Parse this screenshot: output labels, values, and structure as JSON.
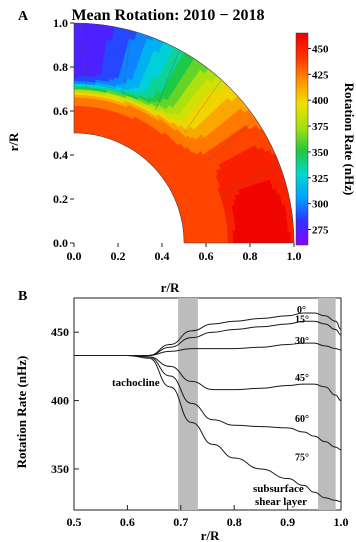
{
  "chart_data": [
    {
      "panel": "A",
      "type": "heatmap",
      "title": "Mean Rotation: 2010 − 2018",
      "xlabel": "r/R",
      "ylabel": "r/R",
      "xlim": [
        0.0,
        1.0
      ],
      "ylim": [
        0.0,
        1.0
      ],
      "x_ticks": [
        "0.0",
        "0.2",
        "0.4",
        "0.6",
        "0.8",
        "1.0"
      ],
      "y_ticks": [
        "0.0",
        "0.2",
        "0.4",
        "0.6",
        "0.8",
        "1.0"
      ],
      "colorbar": {
        "label": "Rotation Rate (nHz)",
        "ticks": [
          "450",
          "425",
          "400",
          "375",
          "350",
          "325",
          "300",
          "275"
        ],
        "range": [
          260,
          465
        ]
      },
      "inner_radius": 0.5,
      "outer_radius": 1.0,
      "colors": [
        "#8b00ff",
        "#3030ff",
        "#00a0ff",
        "#00d8d0",
        "#20c840",
        "#a8e010",
        "#f0e000",
        "#ff9000",
        "#ff3000",
        "#ee0000"
      ]
    },
    {
      "panel": "B",
      "type": "line",
      "xlabel": "r/R",
      "ylabel": "Rotation Rate (nHz)",
      "xlim": [
        0.5,
        1.0
      ],
      "ylim": [
        320,
        475
      ],
      "x_ticks": [
        0.5,
        0.6,
        0.7,
        0.8,
        0.9,
        1.0
      ],
      "y_ticks": [
        350,
        400,
        450
      ],
      "shaded_regions": [
        [
          0.695,
          0.732
        ],
        [
          0.957,
          0.99
        ]
      ],
      "annotations": {
        "tachocline": "tachocline",
        "subsurface": "subsurface",
        "shear_layer": "shear layer"
      },
      "series": [
        {
          "name": "0°",
          "x": [
            0.5,
            0.6,
            0.64,
            0.68,
            0.72,
            0.76,
            0.8,
            0.85,
            0.9,
            0.93,
            0.95,
            0.97,
            0.99,
            1.0
          ],
          "y": [
            433,
            433,
            433,
            441,
            451,
            456,
            458,
            460,
            462,
            464,
            464,
            462,
            458,
            452
          ]
        },
        {
          "name": "15°",
          "x": [
            0.5,
            0.6,
            0.64,
            0.68,
            0.72,
            0.76,
            0.8,
            0.85,
            0.9,
            0.93,
            0.95,
            0.97,
            0.99,
            1.0
          ],
          "y": [
            433,
            433,
            433,
            439,
            446,
            450,
            452,
            454,
            456,
            458,
            458,
            456,
            452,
            448
          ]
        },
        {
          "name": "30°",
          "x": [
            0.5,
            0.6,
            0.64,
            0.68,
            0.72,
            0.76,
            0.8,
            0.85,
            0.9,
            0.93,
            0.95,
            0.97,
            0.99,
            1.0
          ],
          "y": [
            433,
            433,
            433,
            436,
            438,
            438,
            438,
            439,
            441,
            442,
            442,
            440,
            438,
            437
          ]
        },
        {
          "name": "45°",
          "x": [
            0.5,
            0.6,
            0.64,
            0.68,
            0.72,
            0.76,
            0.8,
            0.85,
            0.9,
            0.93,
            0.95,
            0.97,
            0.99,
            1.0
          ],
          "y": [
            433,
            433,
            432,
            425,
            414,
            408,
            408,
            409,
            411,
            412,
            412,
            410,
            404,
            400
          ]
        },
        {
          "name": "60°",
          "x": [
            0.5,
            0.6,
            0.64,
            0.68,
            0.72,
            0.76,
            0.8,
            0.85,
            0.9,
            0.93,
            0.95,
            0.97,
            0.99,
            1.0
          ],
          "y": [
            433,
            433,
            432,
            418,
            398,
            386,
            382,
            381,
            380,
            377,
            374,
            370,
            366,
            364
          ]
        },
        {
          "name": "75°",
          "x": [
            0.5,
            0.6,
            0.64,
            0.68,
            0.72,
            0.76,
            0.8,
            0.85,
            0.9,
            0.93,
            0.95,
            0.97,
            0.99,
            1.0
          ],
          "y": [
            433,
            433,
            431,
            410,
            384,
            368,
            358,
            350,
            343,
            338,
            333,
            329,
            327,
            326
          ]
        }
      ]
    }
  ]
}
